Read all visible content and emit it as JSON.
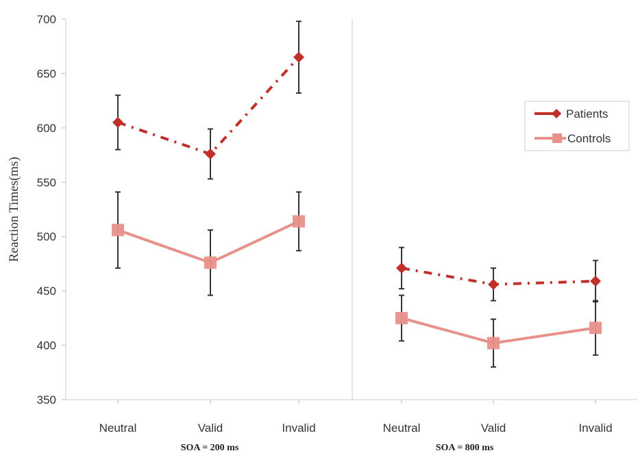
{
  "chart_data": {
    "type": "line",
    "ylabel": "Reaction Times(ms)",
    "ylim": [
      350,
      700
    ],
    "yticks": [
      350,
      400,
      450,
      500,
      550,
      600,
      650,
      700
    ],
    "grid": false,
    "legend_position": "right",
    "legend": [
      {
        "name": "Patients",
        "color": "#c0302b",
        "marker": "diamond",
        "line_style": "dash-dot"
      },
      {
        "name": "Controls",
        "color": "#e8908a",
        "marker": "square",
        "line_style": "solid"
      }
    ],
    "panels": [
      {
        "label": "SOA = 200 ms",
        "categories": [
          "Neutral",
          "Valid",
          "Invalid"
        ],
        "series": [
          {
            "name": "Patients",
            "values": [
              605,
              576,
              665
            ],
            "error": [
              25,
              23,
              33
            ]
          },
          {
            "name": "Controls",
            "values": [
              506,
              476,
              514
            ],
            "error": [
              35,
              30,
              27
            ]
          }
        ]
      },
      {
        "label": "SOA = 800 ms",
        "categories": [
          "Neutral",
          "Valid",
          "Invalid"
        ],
        "series": [
          {
            "name": "Patients",
            "values": [
              471,
              456,
              459
            ],
            "error": [
              19,
              15,
              19
            ]
          },
          {
            "name": "Controls",
            "values": [
              425,
              402,
              416
            ],
            "error": [
              21,
              22,
              25
            ]
          }
        ]
      }
    ]
  }
}
